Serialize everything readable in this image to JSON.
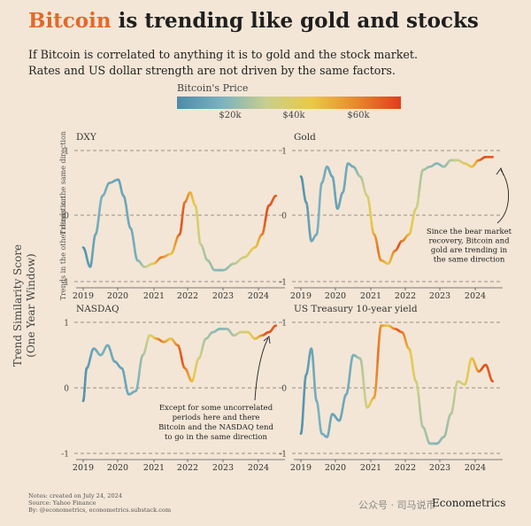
{
  "title": {
    "accent": "Bitcoin",
    "rest": " is trending like gold and stocks"
  },
  "subtitle": [
    "If Bitcoin is correlated to anything it is to gold and the stock market.",
    "Rates and US dollar strength are not driven by the same factors."
  ],
  "legend": {
    "title": "Bitcoin's Price",
    "ticks": [
      "$20k",
      "$40k",
      "$60k"
    ],
    "colors": [
      "#4d8ba8",
      "#7ab2c0",
      "#c9cf8c",
      "#e9c948",
      "#e78a2e",
      "#de3e1c"
    ]
  },
  "y_axis_title": [
    "Trend Similarity Score",
    "(One Year Window)"
  ],
  "chart_data": [
    {
      "type": "line",
      "title": "DXY",
      "x_ticks": [
        "2019",
        "2020",
        "2021",
        "2022",
        "2023",
        "2024"
      ],
      "y_ticks": [
        "1",
        "0",
        "-1"
      ],
      "ylim": [
        -1,
        1
      ],
      "ylabel_top": "Trends in the same direction",
      "ylabel_bottom": "Trends in the other direction",
      "x": [
        2019.0,
        2019.2,
        2019.35,
        2019.55,
        2019.75,
        2020.0,
        2020.15,
        2020.35,
        2020.55,
        2020.75,
        2021.0,
        2021.25,
        2021.5,
        2021.75,
        2021.9,
        2022.05,
        2022.2,
        2022.35,
        2022.55,
        2022.75,
        2023.0,
        2023.3,
        2023.6,
        2023.9,
        2024.1,
        2024.3,
        2024.5
      ],
      "y": [
        -0.5,
        -0.8,
        -0.3,
        0.3,
        0.5,
        0.55,
        0.3,
        -0.2,
        -0.7,
        -0.8,
        -0.75,
        -0.65,
        -0.6,
        -0.3,
        0.2,
        0.35,
        0.15,
        -0.45,
        -0.7,
        -0.85,
        -0.85,
        -0.75,
        -0.65,
        -0.5,
        -0.3,
        0.15,
        0.3
      ]
    },
    {
      "type": "line",
      "title": "Gold",
      "x_ticks": [
        "2019",
        "2020",
        "2021",
        "2022",
        "2023",
        "2024"
      ],
      "y_ticks": [
        "1",
        "0",
        "-1"
      ],
      "ylim": [
        -1,
        1
      ],
      "x": [
        2019.0,
        2019.15,
        2019.3,
        2019.45,
        2019.6,
        2019.75,
        2019.9,
        2020.05,
        2020.2,
        2020.35,
        2020.5,
        2020.7,
        2020.9,
        2021.1,
        2021.3,
        2021.5,
        2021.7,
        2021.9,
        2022.1,
        2022.3,
        2022.5,
        2022.7,
        2022.9,
        2023.1,
        2023.3,
        2023.5,
        2023.7,
        2023.9,
        2024.1,
        2024.3,
        2024.5
      ],
      "y": [
        0.6,
        0.2,
        -0.4,
        -0.3,
        0.5,
        0.75,
        0.6,
        0.1,
        0.35,
        0.8,
        0.75,
        0.6,
        0.3,
        -0.3,
        -0.7,
        -0.75,
        -0.55,
        -0.4,
        -0.3,
        0.1,
        0.7,
        0.75,
        0.8,
        0.75,
        0.85,
        0.85,
        0.8,
        0.75,
        0.85,
        0.9,
        0.9
      ]
    },
    {
      "type": "line",
      "title": "NASDAQ",
      "x_ticks": [
        "2019",
        "2020",
        "2021",
        "2022",
        "2023",
        "2024"
      ],
      "y_ticks": [
        "1",
        "0",
        "-1"
      ],
      "ylim": [
        -1,
        1
      ],
      "x": [
        2019.0,
        2019.1,
        2019.3,
        2019.5,
        2019.7,
        2019.9,
        2020.1,
        2020.3,
        2020.5,
        2020.7,
        2020.9,
        2021.1,
        2021.3,
        2021.5,
        2021.7,
        2021.9,
        2022.1,
        2022.3,
        2022.5,
        2022.7,
        2022.9,
        2023.1,
        2023.3,
        2023.5,
        2023.7,
        2023.9,
        2024.1,
        2024.3,
        2024.5
      ],
      "y": [
        -0.2,
        0.3,
        0.6,
        0.5,
        0.65,
        0.4,
        0.3,
        -0.1,
        -0.05,
        0.5,
        0.8,
        0.75,
        0.7,
        0.75,
        0.65,
        0.3,
        0.1,
        0.45,
        0.75,
        0.85,
        0.9,
        0.9,
        0.8,
        0.85,
        0.85,
        0.75,
        0.8,
        0.85,
        0.95
      ]
    },
    {
      "type": "line",
      "title": "US Treasury 10-year yield",
      "x_ticks": [
        "2019",
        "2020",
        "2021",
        "2022",
        "2023",
        "2024"
      ],
      "y_ticks": [
        "1",
        "0",
        "-1"
      ],
      "ylim": [
        -1,
        1
      ],
      "x": [
        2019.0,
        2019.15,
        2019.3,
        2019.45,
        2019.6,
        2019.75,
        2019.9,
        2020.1,
        2020.3,
        2020.5,
        2020.7,
        2020.9,
        2021.1,
        2021.3,
        2021.5,
        2021.7,
        2021.9,
        2022.1,
        2022.3,
        2022.5,
        2022.7,
        2022.9,
        2023.1,
        2023.3,
        2023.5,
        2023.7,
        2023.9,
        2024.1,
        2024.3,
        2024.5
      ],
      "y": [
        -0.7,
        0.2,
        0.6,
        -0.2,
        -0.7,
        -0.75,
        -0.4,
        -0.5,
        -0.1,
        0.5,
        0.45,
        -0.3,
        -0.15,
        0.95,
        0.95,
        0.9,
        0.85,
        0.6,
        0.1,
        -0.6,
        -0.85,
        -0.85,
        -0.75,
        -0.4,
        0.1,
        0.05,
        0.45,
        0.25,
        0.35,
        0.1
      ]
    }
  ],
  "annotations": {
    "gold": [
      "Since the bear market",
      "recovery, Bitcoin and",
      "gold are trending in",
      "the same direction"
    ],
    "nasdaq": [
      "Except for some uncorrelated",
      "periods here and there",
      "Bitcoin and the NASDAQ tend",
      "to go in the same direction"
    ]
  },
  "notes": [
    "Notes: created on July 24, 2024",
    "Source: Yahoo Finance",
    "By: @econometrics, econometrics.substack.com"
  ],
  "brand": "Econometrics",
  "watermark": "公众号 · 司马说币"
}
